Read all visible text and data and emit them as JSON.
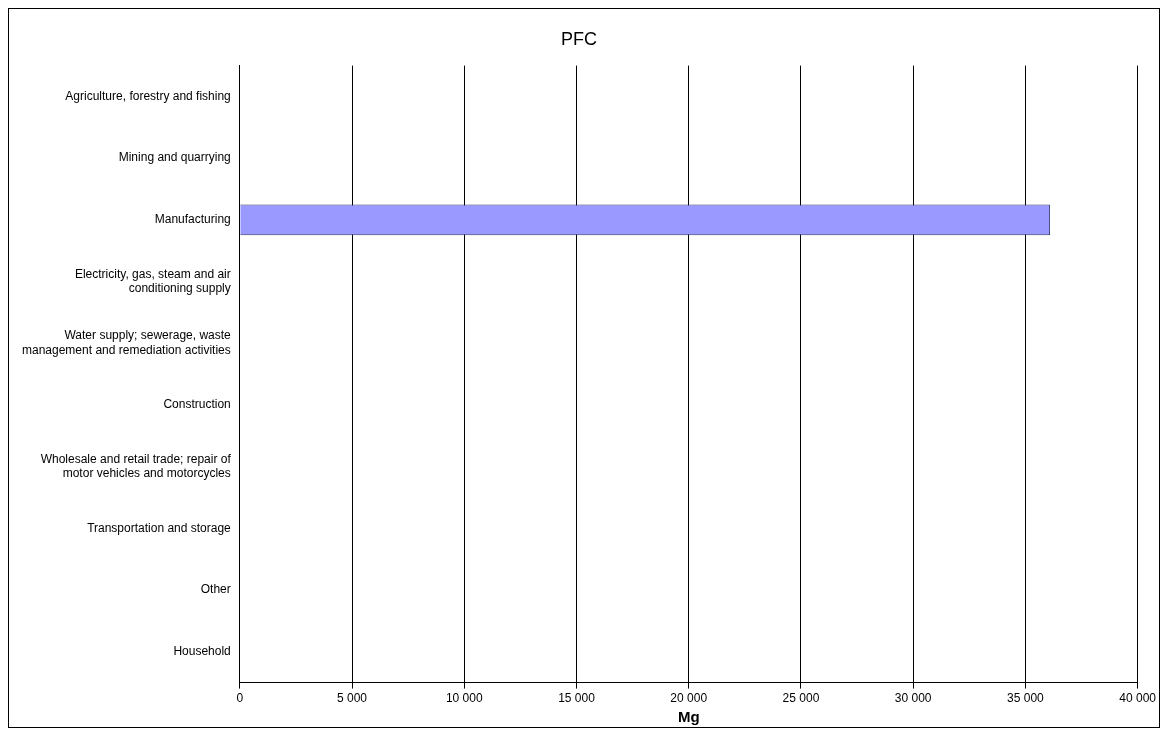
{
  "chart_data": {
    "type": "bar",
    "orientation": "horizontal",
    "title": "PFC",
    "xlabel": "Mg",
    "categories": [
      "Agriculture, forestry and fishing",
      "Mining and quarrying",
      "Manufacturing",
      "Electricity, gas, steam and air conditioning supply",
      "Water supply; sewerage, waste management and remediation activities",
      "Construction",
      "Wholesale and retail trade; repair of motor vehicles and motorcycles",
      "Transportation and storage",
      "Other",
      "Household"
    ],
    "values": [
      0,
      0,
      36100,
      0,
      0,
      0,
      0,
      0,
      0,
      0
    ],
    "color": "#9999ff",
    "xlim": [
      0,
      40000
    ],
    "xticks": [
      0,
      {
        "value": 5000,
        "label": "5 000"
      },
      {
        "value": 10000,
        "label": "10 000"
      },
      {
        "value": 15000,
        "label": "15 000"
      },
      {
        "value": 20000,
        "label": "20 000"
      },
      {
        "value": 25000,
        "label": "25 000"
      },
      {
        "value": 30000,
        "label": "30 000"
      },
      {
        "value": 35000,
        "label": "35 000"
      },
      {
        "value": 40000,
        "label": "40 000"
      }
    ],
    "grid": "x",
    "legend": false
  }
}
